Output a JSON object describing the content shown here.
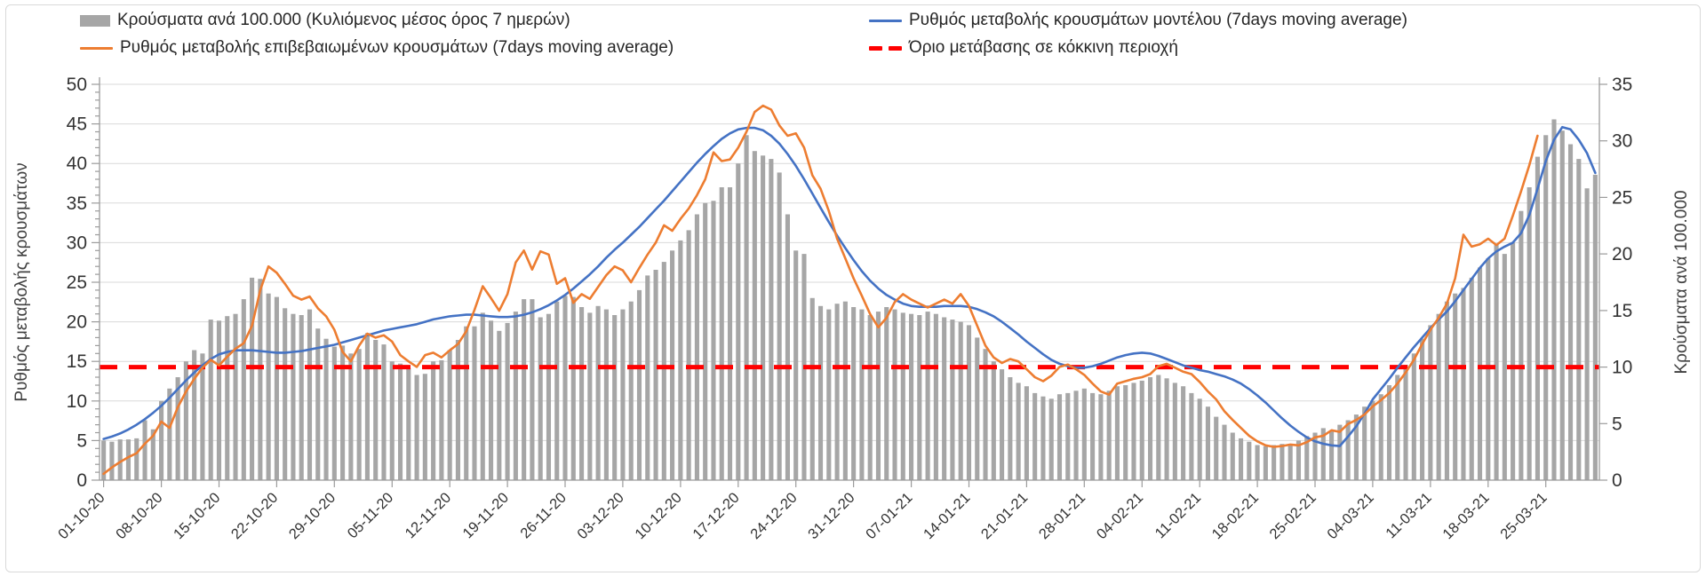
{
  "chart_data": {
    "type": "combo",
    "title": "",
    "background": "#ffffff",
    "grid": {
      "show": true,
      "color": "#d9d9d9"
    },
    "legend_position": "top",
    "x": {
      "n_days": 182,
      "days_per_tick": 7,
      "tick_labels": [
        "01-10-20",
        "08-10-20",
        "15-10-20",
        "22-10-20",
        "29-10-20",
        "05-11-20",
        "12-11-20",
        "19-11-20",
        "26-11-20",
        "03-12-20",
        "10-12-20",
        "17-12-20",
        "24-12-20",
        "31-12-20",
        "07-01-21",
        "14-01-21",
        "21-01-21",
        "28-01-21",
        "04-02-21",
        "11-02-21",
        "18-02-21",
        "25-02-21",
        "04-03-21",
        "11-03-21",
        "18-03-21",
        "25-03-21"
      ]
    },
    "axes": {
      "left": {
        "title": "Ρυθμός μεταβολής κρουσμάτων",
        "min": 0,
        "max": 50,
        "step": 5,
        "minor_step": 1
      },
      "right": {
        "title": "Κρούσματα ανά 100.000",
        "min": 0,
        "max": 35,
        "step": 5
      }
    },
    "series": [
      {
        "name": "Κρούσματα ανά 100.000 (Κυλιόμενος μέσος όρος 7 ημερών)",
        "type": "bar",
        "axis": "right",
        "color": "#a6a6a6",
        "values": [
          3.5,
          3.4,
          3.6,
          3.6,
          3.7,
          5.3,
          4.5,
          7.0,
          8.1,
          9.1,
          10.5,
          11.5,
          11.2,
          14.2,
          14.1,
          14.5,
          14.7,
          16.0,
          17.9,
          17.8,
          16.5,
          16.2,
          15.2,
          14.7,
          14.6,
          15.1,
          13.4,
          12.5,
          11.8,
          11.9,
          11.2,
          11.6,
          13.0,
          12.4,
          12.0,
          10.5,
          10.3,
          9.9,
          9.3,
          9.4,
          10.5,
          10.6,
          11.5,
          12.4,
          13.6,
          13.6,
          14.8,
          14.1,
          13.2,
          13.9,
          14.9,
          16.0,
          16.0,
          14.4,
          14.7,
          15.8,
          16.3,
          16.2,
          15.3,
          14.8,
          15.4,
          15.1,
          14.6,
          15.1,
          15.8,
          16.8,
          18.1,
          18.6,
          19.3,
          20.3,
          21.2,
          22.1,
          23.5,
          24.5,
          24.7,
          25.9,
          25.9,
          28.0,
          30.5,
          29.1,
          28.7,
          28.4,
          27.2,
          23.5,
          20.3,
          20.0,
          16.1,
          15.4,
          15.1,
          15.6,
          15.8,
          15.3,
          15.1,
          14.6,
          14.9,
          15.3,
          15.1,
          14.8,
          14.7,
          14.6,
          14.9,
          14.7,
          14.4,
          14.2,
          14.0,
          13.7,
          12.6,
          11.6,
          10.5,
          9.8,
          9.1,
          8.6,
          8.3,
          7.7,
          7.4,
          7.2,
          7.6,
          7.7,
          7.9,
          8.1,
          7.7,
          7.6,
          7.9,
          8.3,
          8.4,
          8.6,
          8.8,
          9.1,
          9.3,
          9.0,
          8.6,
          8.3,
          7.7,
          7.2,
          6.5,
          5.6,
          4.9,
          4.2,
          3.7,
          3.4,
          3.1,
          3.0,
          3.1,
          3.2,
          3.2,
          3.5,
          3.9,
          4.2,
          4.6,
          4.4,
          4.9,
          5.3,
          5.8,
          6.5,
          7.0,
          7.6,
          8.4,
          9.3,
          10.2,
          11.2,
          12.5,
          13.7,
          14.7,
          15.8,
          16.5,
          17.0,
          17.9,
          18.8,
          19.6,
          20.8,
          20.0,
          21.0,
          23.8,
          25.9,
          28.6,
          30.5,
          31.9,
          30.9,
          29.7,
          28.4,
          25.8,
          27.0
        ]
      },
      {
        "name": "Ρυθμός μεταβολής κρουσμάτων μοντέλου (7days moving average)",
        "type": "line",
        "axis": "left",
        "color": "#4472c4",
        "values": [
          5.2,
          5.5,
          5.9,
          6.4,
          7.0,
          7.7,
          8.5,
          9.4,
          10.4,
          11.5,
          12.6,
          13.6,
          14.5,
          15.3,
          15.9,
          16.2,
          16.4,
          16.4,
          16.4,
          16.3,
          16.2,
          16.1,
          16.1,
          16.2,
          16.3,
          16.5,
          16.7,
          16.9,
          17.1,
          17.4,
          17.7,
          18.0,
          18.3,
          18.6,
          18.9,
          19.1,
          19.3,
          19.5,
          19.7,
          20.0,
          20.3,
          20.5,
          20.7,
          20.8,
          20.9,
          20.9,
          20.8,
          20.7,
          20.6,
          20.6,
          20.7,
          20.9,
          21.2,
          21.6,
          22.1,
          22.7,
          23.4,
          24.2,
          25.1,
          26.0,
          27.0,
          28.1,
          29.1,
          30.0,
          31.0,
          32.0,
          33.1,
          34.2,
          35.3,
          36.5,
          37.7,
          38.9,
          40.1,
          41.2,
          42.2,
          43.1,
          43.8,
          44.3,
          44.5,
          44.5,
          44.2,
          43.5,
          42.5,
          41.2,
          39.7,
          38.0,
          36.2,
          34.4,
          32.6,
          30.9,
          29.3,
          27.8,
          26.4,
          25.2,
          24.2,
          23.4,
          22.8,
          22.3,
          22.0,
          21.9,
          21.9,
          21.9,
          22.0,
          22.0,
          22.0,
          21.9,
          21.6,
          21.2,
          20.7,
          20.0,
          19.2,
          18.4,
          17.5,
          16.7,
          15.9,
          15.2,
          14.7,
          14.4,
          14.2,
          14.2,
          14.4,
          14.7,
          15.1,
          15.5,
          15.8,
          16.0,
          16.1,
          16.0,
          15.7,
          15.3,
          14.9,
          14.5,
          14.2,
          13.9,
          13.7,
          13.4,
          13.1,
          12.7,
          12.2,
          11.5,
          10.7,
          9.8,
          8.8,
          7.8,
          6.9,
          6.1,
          5.4,
          4.9,
          4.6,
          4.4,
          4.3,
          5.5,
          6.8,
          8.4,
          10.2,
          11.5,
          12.8,
          14.2,
          15.5,
          16.8,
          18.0,
          19.2,
          20.3,
          21.3,
          22.6,
          24.0,
          25.4,
          26.8,
          28.0,
          28.9,
          29.5,
          30.0,
          31.2,
          33.5,
          36.8,
          40.3,
          43.0,
          44.6,
          44.3,
          43.0,
          41.3,
          38.8
        ]
      },
      {
        "name": "Ρυθμός μεταβολής επιβεβαιωμένων κρουσμάτων (7days moving average)",
        "type": "line",
        "axis": "left",
        "color": "#ed7d31",
        "values": [
          0.8,
          1.6,
          2.3,
          2.9,
          3.4,
          4.6,
          5.6,
          7.4,
          6.6,
          9.2,
          11.2,
          12.8,
          14.2,
          15.2,
          14.5,
          15.6,
          16.6,
          17.3,
          19.5,
          24.0,
          27.0,
          26.2,
          24.8,
          23.3,
          22.8,
          23.2,
          21.7,
          20.7,
          19.0,
          16.2,
          15.0,
          17.0,
          18.5,
          18.0,
          18.3,
          17.5,
          15.8,
          15.0,
          14.3,
          15.8,
          16.1,
          15.5,
          16.4,
          17.2,
          18.8,
          21.5,
          24.5,
          23.0,
          21.4,
          23.5,
          27.5,
          29.0,
          26.6,
          28.9,
          28.5,
          24.8,
          25.5,
          22.4,
          23.5,
          22.9,
          24.4,
          25.9,
          27.0,
          26.5,
          25.0,
          26.8,
          28.5,
          30.0,
          32.2,
          31.5,
          33.0,
          34.3,
          36.0,
          38.0,
          41.4,
          40.3,
          40.5,
          42.0,
          44.0,
          46.5,
          47.3,
          46.8,
          44.8,
          43.5,
          43.8,
          42.0,
          38.5,
          36.8,
          34.0,
          30.5,
          28.0,
          25.5,
          23.3,
          21.0,
          19.3,
          20.5,
          22.5,
          23.5,
          22.8,
          22.3,
          21.8,
          22.3,
          22.8,
          22.3,
          23.5,
          22.0,
          19.5,
          17.0,
          15.5,
          14.8,
          15.3,
          15.0,
          14.0,
          13.0,
          12.5,
          13.2,
          14.3,
          14.6,
          14.0,
          13.3,
          12.2,
          11.2,
          10.8,
          12.2,
          12.5,
          12.8,
          13.0,
          13.4,
          14.4,
          14.7,
          14.2,
          13.7,
          13.4,
          12.4,
          11.2,
          10.2,
          8.7,
          7.6,
          6.6,
          5.6,
          4.9,
          4.4,
          4.2,
          4.3,
          4.5,
          4.4,
          4.8,
          5.4,
          5.6,
          6.3,
          6.1,
          7.1,
          7.6,
          8.3,
          9.3,
          10.1,
          11.0,
          12.2,
          13.6,
          15.2,
          17.2,
          19.0,
          20.5,
          22.3,
          25.5,
          31.0,
          29.5,
          29.8,
          30.5,
          29.7,
          30.5,
          33.4,
          36.5,
          39.8,
          43.5
        ]
      },
      {
        "name": "Όριο μετάβασης σε κόκκινη περιοχή",
        "type": "threshold",
        "axis": "right",
        "color": "#ff0000",
        "style": "dashed",
        "value": 10
      }
    ]
  }
}
